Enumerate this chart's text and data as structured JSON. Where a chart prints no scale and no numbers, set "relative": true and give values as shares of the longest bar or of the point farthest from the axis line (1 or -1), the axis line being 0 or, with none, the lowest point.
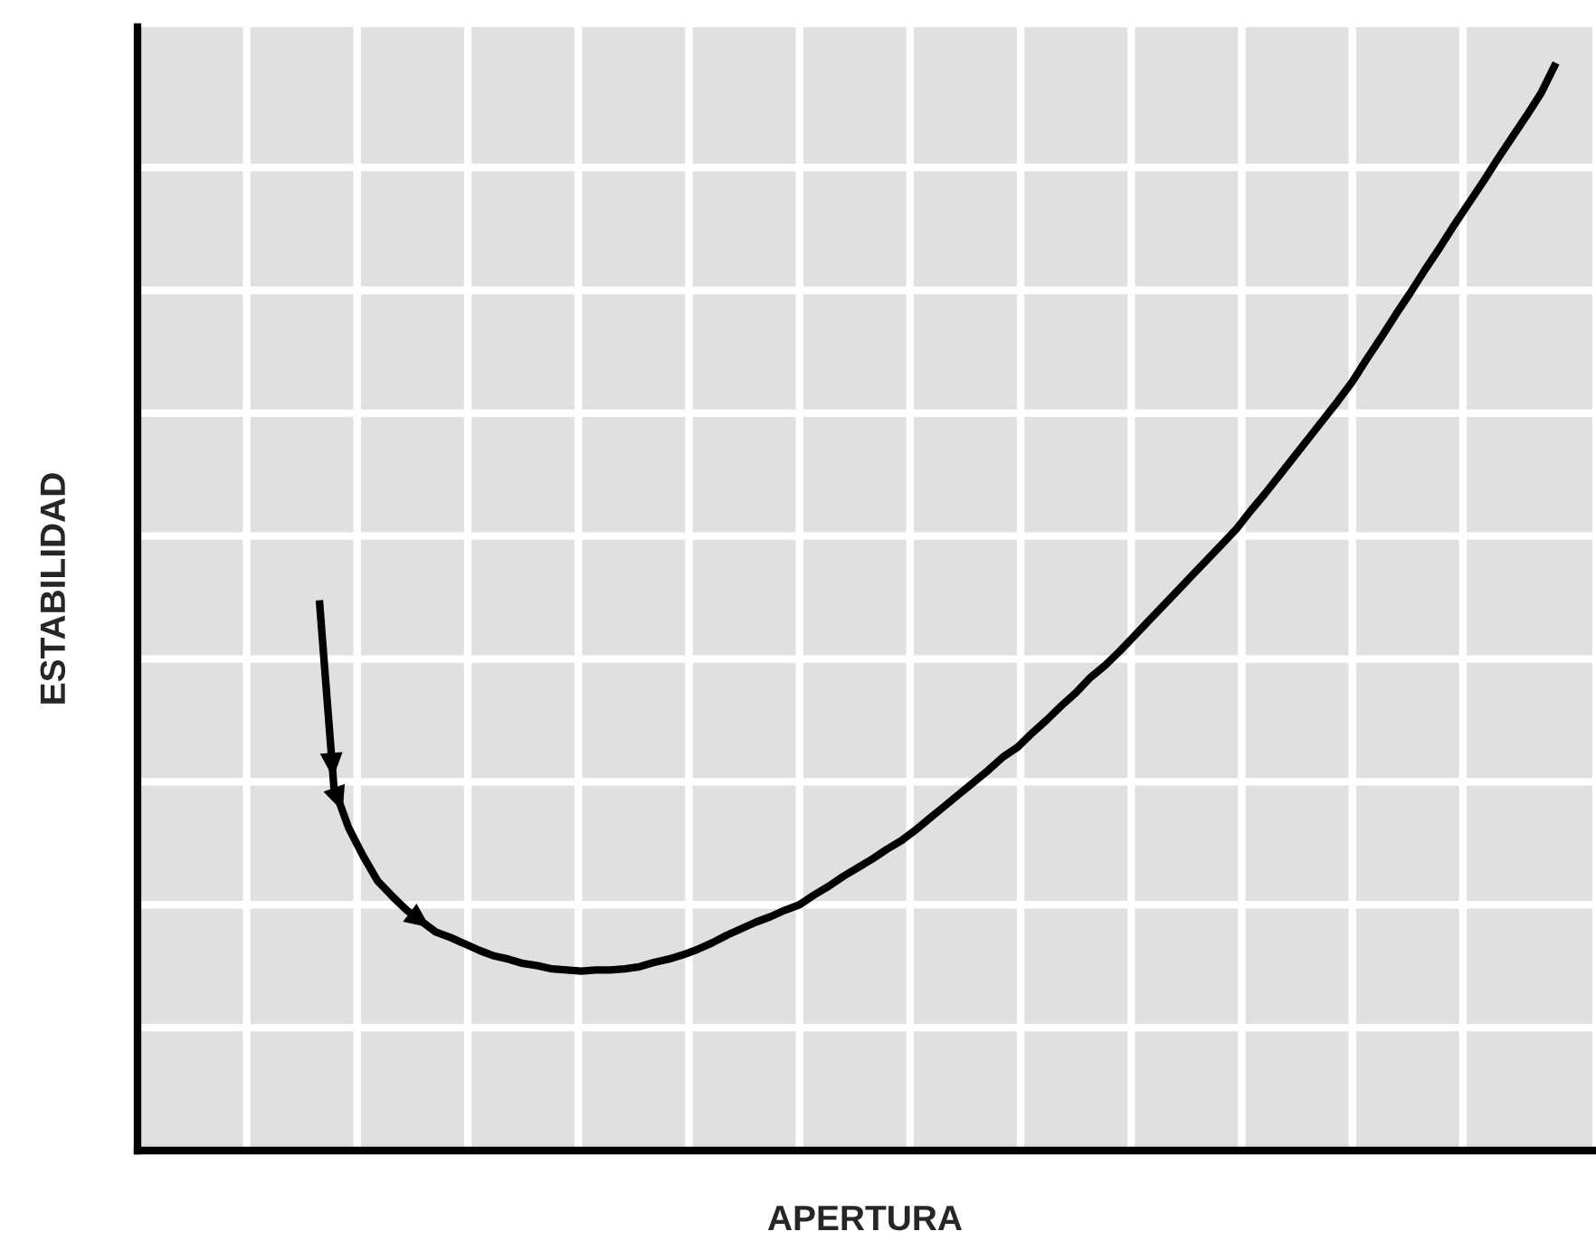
{
  "chart_data": {
    "type": "line",
    "relative": true,
    "xlabel": "APERTURA",
    "ylabel": "ESTABILIDAD",
    "grid": true,
    "categories": [
      null,
      null,
      null,
      null,
      null,
      null,
      null,
      null,
      null,
      null,
      null,
      null,
      null,
      null,
      null,
      null,
      null,
      null,
      null,
      null,
      null,
      null,
      null,
      null,
      null,
      null,
      null,
      null,
      null,
      null,
      null,
      null,
      null,
      null,
      null,
      null,
      null,
      null,
      null,
      null,
      null,
      null,
      null,
      null,
      null,
      null,
      null,
      null,
      null,
      null,
      null,
      null,
      null,
      null,
      null,
      null,
      null,
      null,
      null,
      null,
      null,
      null,
      null,
      null,
      null,
      null,
      null,
      null,
      null,
      null,
      null,
      null,
      null,
      null,
      null,
      null,
      null,
      null,
      null,
      null,
      null,
      null,
      null,
      null,
      null,
      null,
      null,
      null,
      null,
      null,
      null,
      null,
      null,
      null,
      null,
      null,
      null,
      null,
      null,
      null
    ],
    "series": [
      {
        "color": "#000000",
        "values": [
          null,
          null,
          null,
          null,
          null,
          null,
          null,
          null,
          null,
          null,
          null,
          null,
          0.506,
          0.334,
          0.297,
          0.271,
          0.248,
          0.234,
          0.221,
          0.211,
          0.201,
          0.196,
          0.19,
          0.184,
          0.179,
          0.176,
          0.172,
          0.17,
          0.167,
          0.166,
          0.165,
          0.166,
          0.166,
          0.167,
          0.169,
          0.173,
          0.176,
          0.18,
          0.185,
          0.191,
          0.198,
          0.204,
          0.21,
          0.215,
          0.221,
          0.226,
          0.235,
          0.243,
          0.252,
          0.26,
          0.268,
          0.277,
          0.285,
          0.295,
          0.306,
          0.317,
          0.328,
          0.339,
          0.35,
          0.362,
          0.371,
          0.384,
          0.396,
          0.409,
          0.421,
          0.435,
          0.446,
          0.459,
          0.473,
          0.487,
          0.501,
          0.515,
          0.529,
          0.543,
          0.557,
          0.571,
          0.588,
          0.604,
          0.621,
          0.638,
          0.655,
          0.672,
          0.689,
          0.707,
          0.728,
          0.748,
          0.769,
          0.789,
          0.81,
          0.83,
          0.851,
          0.871,
          0.891,
          0.912,
          0.932,
          0.952,
          0.973,
          1.0,
          null,
          null
        ]
      }
    ]
  }
}
